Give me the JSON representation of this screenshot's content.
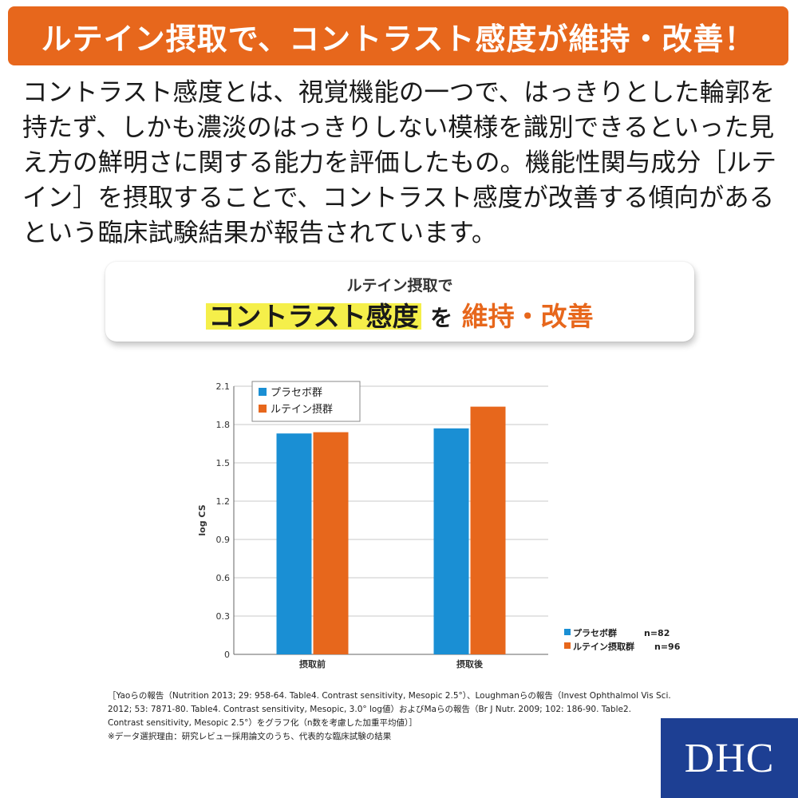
{
  "banner": {
    "title": "ルテイン摂取で、コントラスト感度が維持・改善！"
  },
  "body_text": "コントラスト感度とは、視覚機能の一つで、はっきりとした輪郭を持たず、しかも濃淡のはっきりしない模様を識別できるといった見え方の鮮明さに関する能力を評価したもの。機能性関与成分［ルテイン］を摂取することで、コントラスト感度が改善する傾向があるという臨床試験結果が報告されています。",
  "callout": {
    "line1": "ルテイン摂取で",
    "highlight": "コントラスト感度",
    "particle": "を",
    "accent": "維持・改善"
  },
  "colors": {
    "banner": "#e7671c",
    "placebo": "#1a8fd4",
    "lutein": "#e7671c",
    "highlight": "#f5ef4a",
    "logo_bg": "#1d3f93"
  },
  "chart_data": {
    "type": "bar",
    "categories": [
      "摂取前",
      "摂取後"
    ],
    "series": [
      {
        "name": "プラセボ群",
        "values": [
          1.73,
          1.77
        ]
      },
      {
        "name": "ルテイン摂群",
        "values": [
          1.74,
          1.94
        ]
      }
    ],
    "ylabel": "log CS",
    "ylim": [
      0,
      2.1
    ],
    "yticks": [
      "0",
      "0.3",
      "0.6",
      "0.9",
      "1.2",
      "1.5",
      "1.8",
      "2.1"
    ],
    "grid": true,
    "legend_top": [
      "プラセボ群",
      "ルテイン摂群"
    ],
    "legend_bottom": [
      {
        "label": "プラセボ群",
        "n": "n=82"
      },
      {
        "label": "ルテイン摂取群",
        "n": "n=96"
      }
    ]
  },
  "footnote": {
    "lines": [
      "［Yaoらの報告（Nutrition 2013; 29: 958-64. Table4. Contrast sensitivity, Mesopic 2.5°）、Loughmanらの報告（Invest Ophthalmol Vis Sci.",
      "2012; 53: 7871-80. Table4. Contrast sensitivity, Mesopic, 3.0° log値）およびMaらの報告（Br J Nutr. 2009; 102: 186-90. Table2.",
      "Contrast sensitivity, Mesopic 2.5°）をグラフ化（n数を考慮した加重平均値）］",
      "※データ選択理由：研究レビュー採用論文のうち、代表的な臨床試験の結果"
    ]
  },
  "logo": {
    "text": "DHC"
  }
}
